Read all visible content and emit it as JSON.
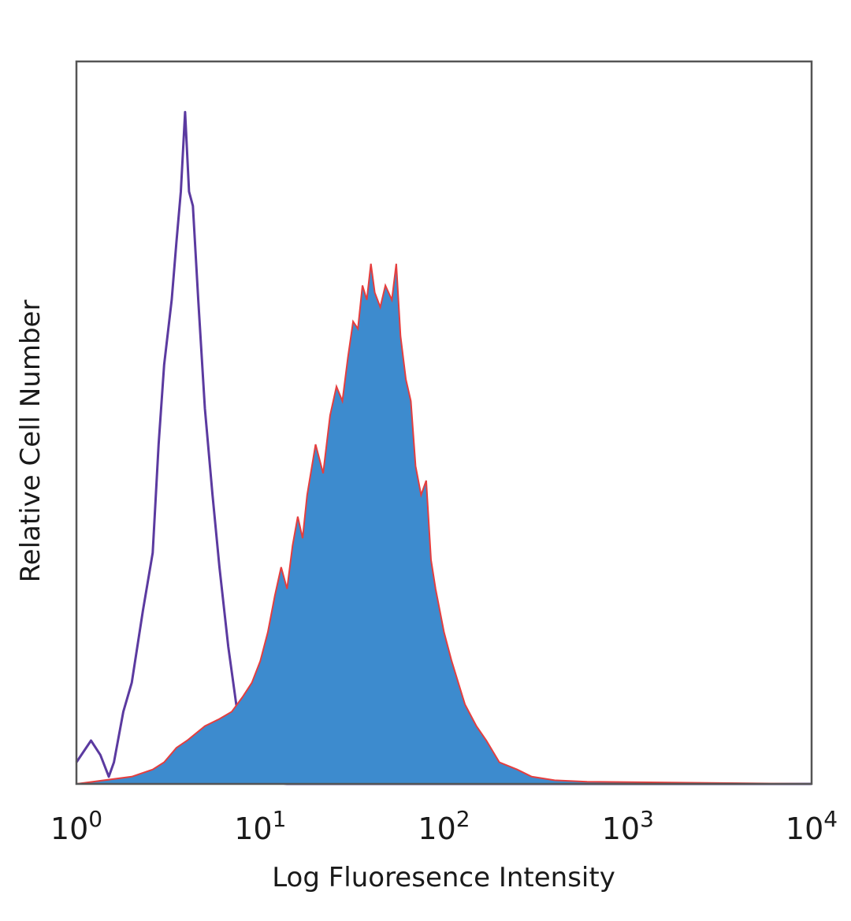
{
  "chart_data": {
    "type": "area",
    "xlabel": "Log Fluoresence Intensity",
    "ylabel": "Relative Cell Number",
    "xscale": "log",
    "xlim": [
      1,
      10000
    ],
    "ylim": [
      0,
      100
    ],
    "grid": false,
    "x_ticks": [
      {
        "base": "10",
        "exp": "0",
        "value": 1
      },
      {
        "base": "10",
        "exp": "1",
        "value": 10
      },
      {
        "base": "10",
        "exp": "2",
        "value": 100
      },
      {
        "base": "10",
        "exp": "3",
        "value": 1000
      },
      {
        "base": "10",
        "exp": "4",
        "value": 10000
      }
    ],
    "series": [
      {
        "style": "outline",
        "color": "#5b3aa0",
        "x": [
          1.0,
          1.2,
          1.35,
          1.5,
          1.6,
          1.8,
          2.0,
          2.3,
          2.6,
          2.8,
          3.0,
          3.3,
          3.5,
          3.7,
          3.9,
          4.1,
          4.3,
          4.6,
          5.0,
          5.5,
          6.0,
          6.7,
          7.5,
          8.5,
          10.0,
          11.0,
          12.0,
          14.0,
          20.0,
          50.0,
          10000.0
        ],
        "y": [
          3,
          6,
          4,
          1,
          3,
          10,
          14,
          24,
          32,
          47,
          58,
          67,
          75,
          82,
          93,
          82,
          80,
          67,
          52,
          40,
          30,
          19,
          10,
          5,
          1.5,
          0.5,
          0.2,
          0,
          0,
          0,
          0
        ]
      },
      {
        "style": "filled",
        "color": "#3d8bce",
        "outline_color": "#e53e3e",
        "x": [
          1.0,
          2.0,
          2.6,
          3.0,
          3.5,
          4.0,
          5.0,
          6.0,
          7.0,
          8.0,
          9.0,
          10.0,
          11.0,
          12.0,
          13.0,
          14.0,
          15.0,
          16.0,
          17.0,
          18.0,
          20.0,
          22.0,
          24.0,
          26.0,
          28.0,
          30.0,
          32.0,
          34.0,
          36.0,
          38.0,
          40.0,
          42.0,
          45.0,
          48.0,
          52.0,
          55.0,
          58.0,
          62.0,
          66.0,
          70.0,
          75.0,
          80.0,
          85.0,
          90.0,
          100.0,
          110.0,
          130.0,
          150.0,
          170.0,
          200.0,
          250.0,
          300.0,
          400.0,
          600.0,
          10000.0
        ],
        "y": [
          0,
          1,
          2,
          3,
          5,
          6,
          8,
          9,
          10,
          12,
          14,
          17,
          21,
          26,
          30,
          27,
          33,
          37,
          34,
          40,
          47,
          43,
          51,
          55,
          53,
          59,
          64,
          63,
          69,
          67,
          72,
          68,
          66,
          69,
          67,
          72,
          62,
          56,
          53,
          44,
          40,
          42,
          31,
          27,
          21,
          17,
          11,
          8,
          6,
          3,
          2,
          1,
          0.5,
          0.3,
          0
        ]
      }
    ]
  }
}
